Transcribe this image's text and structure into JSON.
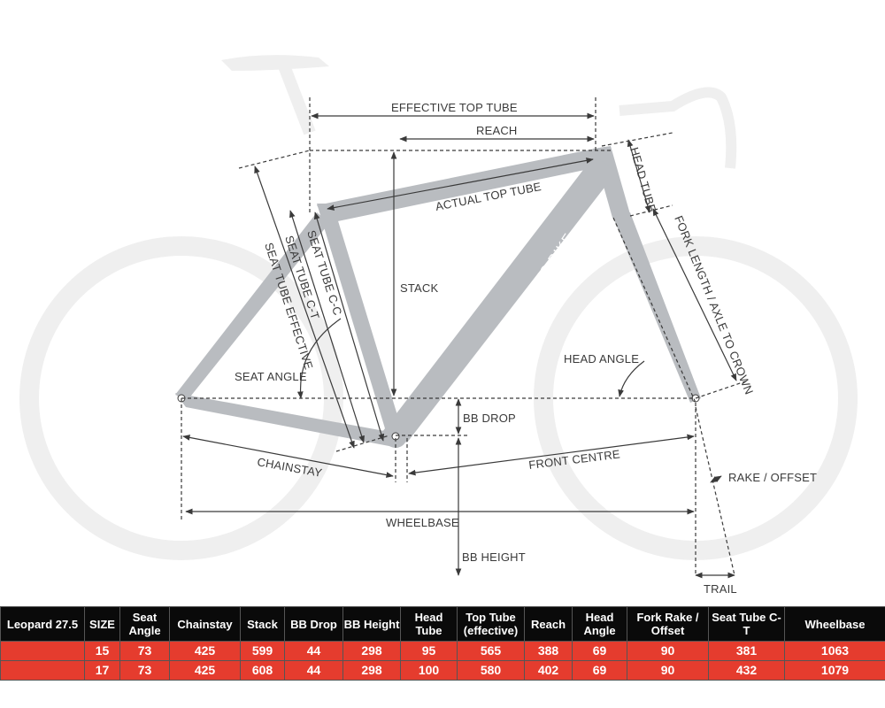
{
  "diagram": {
    "watermark": "GEOMETRYGEEKS.BIKE",
    "labels": {
      "effective_top_tube": "EFFECTIVE TOP TUBE",
      "reach": "REACH",
      "head_tube": "HEAD TUBE",
      "actual_top_tube": "ACTUAL TOP TUBE",
      "fork_length": "FORK LENGTH / AXLE TO CROWN",
      "seat_tube_cc": "SEAT TUBE C-C",
      "seat_tube_ct": "SEAT TUBE C-T",
      "seat_tube_effective": "SEAT TUBE EFFECTIVE",
      "stack": "STACK",
      "seat_angle": "SEAT ANGLE",
      "head_angle": "HEAD ANGLE",
      "bb_drop": "BB DROP",
      "chainstay": "CHAINSTAY",
      "front_centre": "FRONT CENTRE",
      "rake_offset": "RAKE / OFFSET",
      "wheelbase": "WHEELBASE",
      "bb_height": "BB HEIGHT",
      "trail": "TRAIL"
    }
  },
  "table": {
    "model": "Leopard 27.5",
    "headers": [
      "SIZE",
      "Seat Angle",
      "Chainstay",
      "Stack",
      "BB Drop",
      "BB Height",
      "Head Tube",
      "Top Tube (effective)",
      "Reach",
      "Head Angle",
      "Fork Rake / Offset",
      "Seat Tube C-T",
      "Wheelbase"
    ],
    "rows": [
      [
        "15",
        "73",
        "425",
        "599",
        "44",
        "298",
        "95",
        "565",
        "388",
        "69",
        "90",
        "381",
        "1063"
      ],
      [
        "17",
        "73",
        "425",
        "608",
        "44",
        "298",
        "100",
        "580",
        "402",
        "69",
        "90",
        "432",
        "1079"
      ]
    ]
  },
  "colors": {
    "header_bg": "#0a0a0a",
    "row_bg": "#e53c2e",
    "frame": "#b9bcc0",
    "ghost": "#eeeeee"
  }
}
